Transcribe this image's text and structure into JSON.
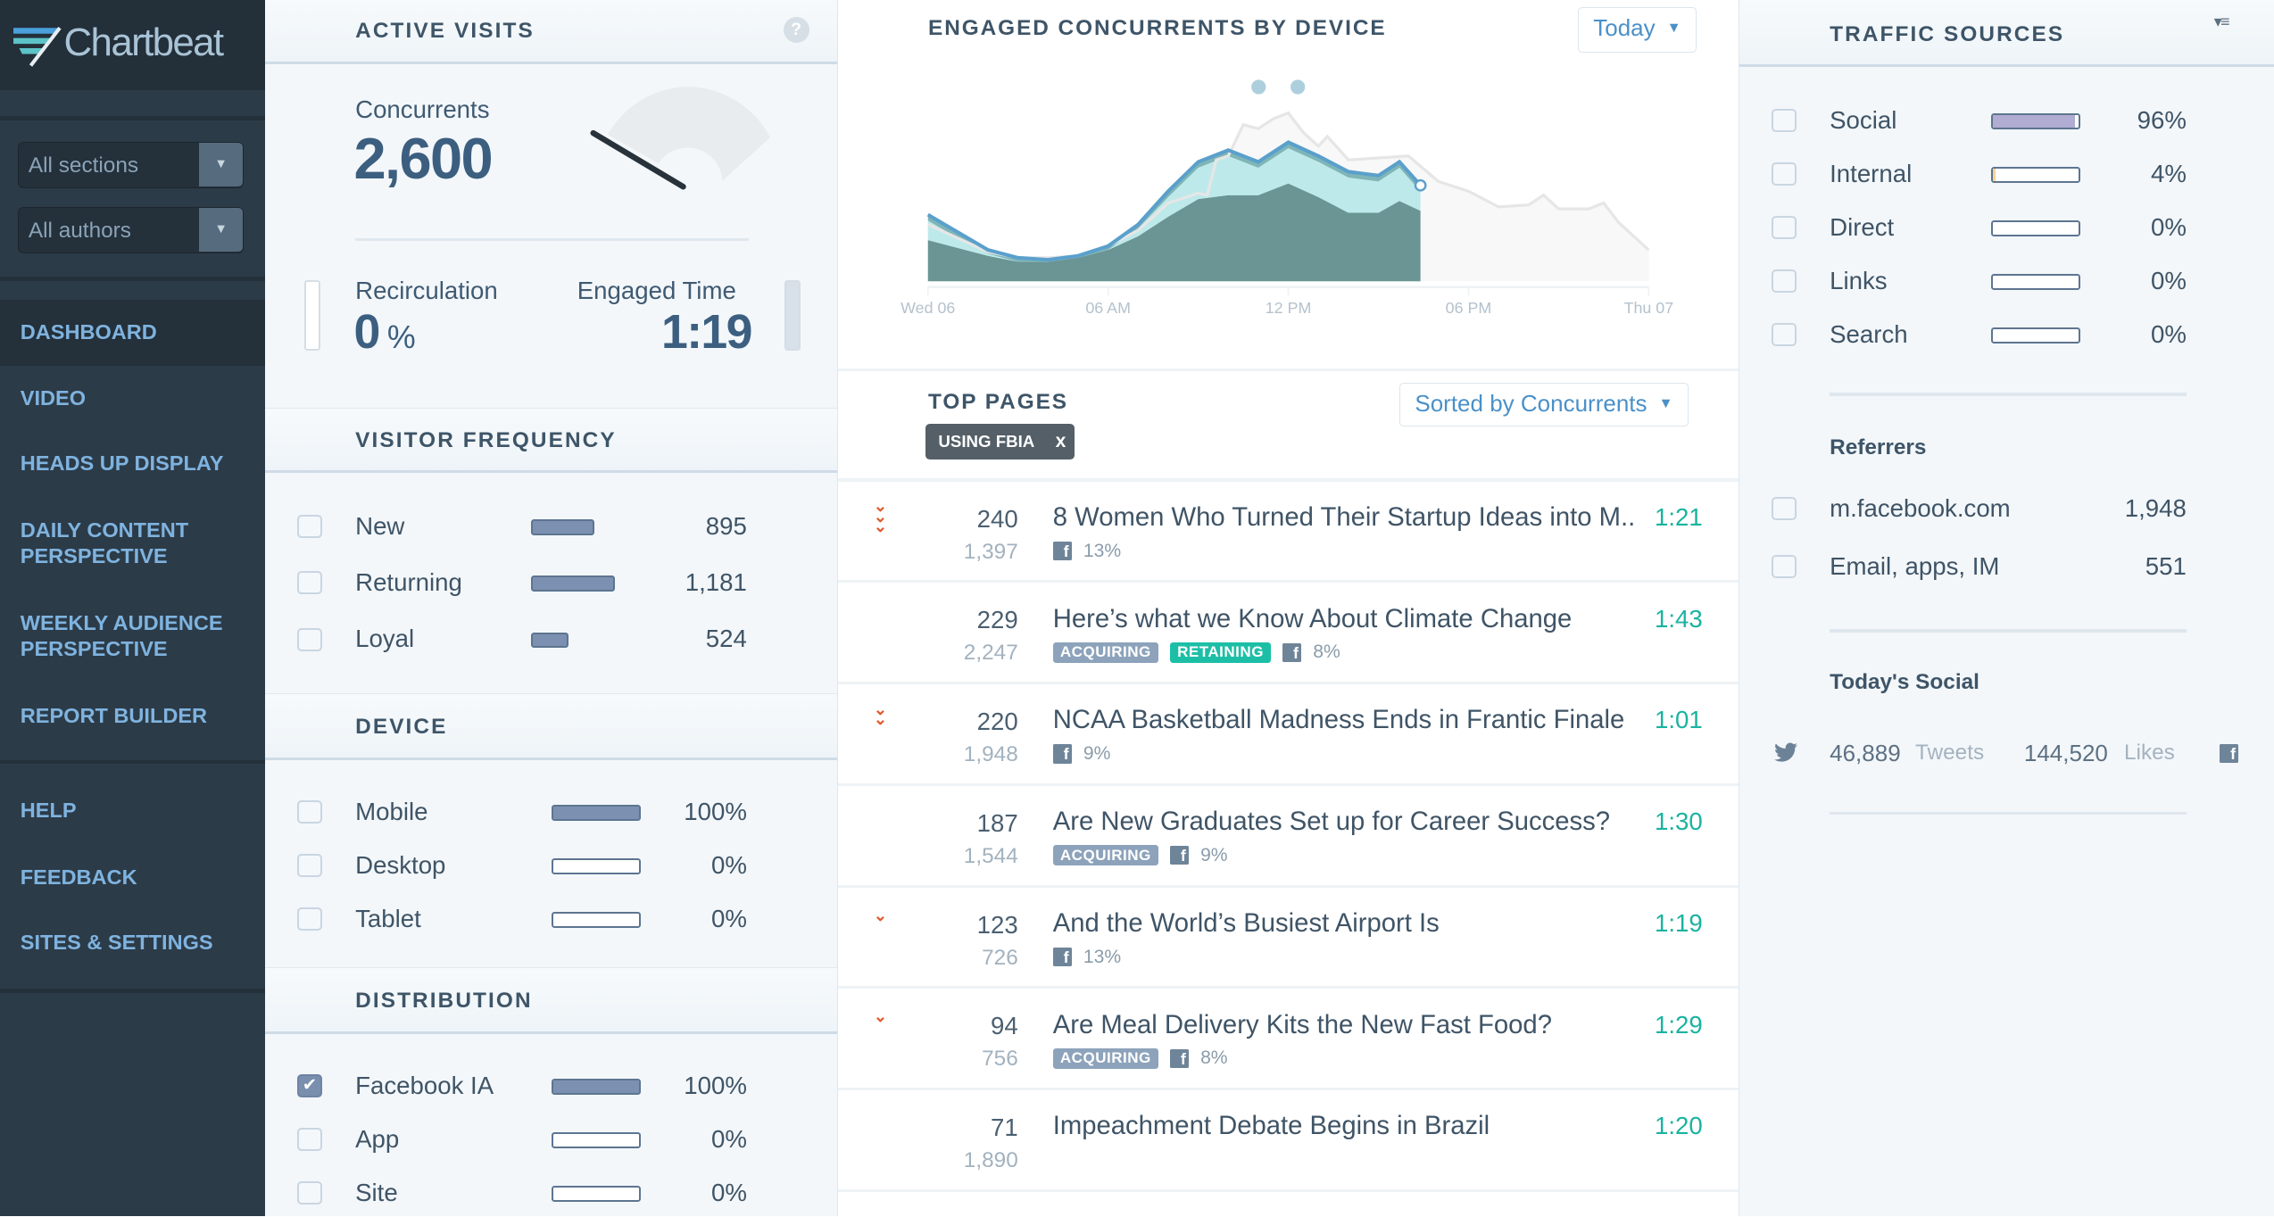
{
  "sidebar": {
    "logo": "Chartbeat",
    "filters": [
      {
        "label": "All sections"
      },
      {
        "label": "All authors"
      }
    ],
    "nav": [
      {
        "label": "DASHBOARD",
        "active": true
      },
      {
        "label": "VIDEO"
      },
      {
        "label": "HEADS UP DISPLAY"
      },
      {
        "label": "DAILY CONTENT PERSPECTIVE"
      },
      {
        "label": "WEEKLY AUDIENCE PERSPECTIVE"
      },
      {
        "label": "REPORT BUILDER"
      }
    ],
    "secondary": [
      {
        "label": "HELP"
      },
      {
        "label": "FEEDBACK"
      },
      {
        "label": "SITES & SETTINGS"
      }
    ]
  },
  "active_visits": {
    "title": "ACTIVE VISITS",
    "help": "?",
    "concurrents_label": "Concurrents",
    "concurrents": "2,600",
    "recirculation_label": "Recirculation",
    "recirculation": "0",
    "recirculation_unit": "%",
    "engaged_label": "Engaged Time",
    "engaged": "1:19"
  },
  "visitor_frequency": {
    "title": "VISITOR FREQUENCY",
    "rows": [
      {
        "label": "New",
        "value": "895",
        "fraction": 0.76
      },
      {
        "label": "Returning",
        "value": "1,181",
        "fraction": 1.0
      },
      {
        "label": "Loyal",
        "value": "524",
        "fraction": 0.45
      }
    ]
  },
  "device": {
    "title": "DEVICE",
    "rows": [
      {
        "label": "Mobile",
        "value": "100%",
        "fraction": 1.0
      },
      {
        "label": "Desktop",
        "value": "0%",
        "fraction": 0
      },
      {
        "label": "Tablet",
        "value": "0%",
        "fraction": 0
      }
    ]
  },
  "distribution": {
    "title": "DISTRIBUTION",
    "rows": [
      {
        "label": "Facebook IA",
        "value": "100%",
        "fraction": 1.0,
        "checked": true
      },
      {
        "label": "App",
        "value": "0%",
        "fraction": 0
      },
      {
        "label": "Site",
        "value": "0%",
        "fraction": 0
      }
    ]
  },
  "chart_data": {
    "type": "area",
    "title": "ENGAGED CONCURRENTS BY DEVICE",
    "range_selector": "Today",
    "x_ticks": [
      "Wed 06",
      "06 AM",
      "12 PM",
      "06 PM",
      "Thu 07"
    ],
    "xlim": [
      0,
      24
    ],
    "ylim": [
      0,
      100
    ],
    "grid": false,
    "stacked": true,
    "colors": {
      "bottom": "#6a9594",
      "middle": "#bde9ea",
      "top": "#7fb5b7",
      "line": "#5aa0cc",
      "previous": "#e6e6e6"
    },
    "x": [
      0,
      1,
      2,
      3,
      4,
      5,
      6,
      7,
      8,
      9,
      10,
      11,
      12,
      13,
      14,
      15,
      15.7,
      16.4
    ],
    "series": [
      {
        "values": [
          21,
          17,
          13,
          10,
          10,
          12,
          16,
          23,
          33,
          42,
          44,
          44,
          50,
          43,
          35,
          35,
          41,
          36
        ]
      },
      {
        "values": [
          10,
          5,
          1,
          0,
          0,
          0,
          0,
          4,
          10,
          16,
          20,
          14,
          18,
          18,
          18,
          16,
          17,
          10
        ]
      },
      {
        "values": [
          3,
          3,
          2,
          2,
          1,
          1,
          2,
          2,
          3,
          3,
          3,
          3,
          3,
          3,
          3,
          3,
          3,
          3
        ]
      }
    ],
    "previous_period": {
      "x": [
        0,
        1,
        2,
        3,
        4,
        5,
        6,
        7,
        8,
        9,
        9.3,
        9.6,
        10,
        10.5,
        11,
        11.5,
        12,
        12.5,
        13,
        13.3,
        14,
        15,
        16,
        17,
        18,
        19,
        20,
        20.5,
        21,
        22,
        22.5,
        23,
        24
      ],
      "values": [
        29,
        22,
        15,
        12,
        12,
        13,
        18,
        26,
        40,
        45,
        44,
        62,
        64,
        80,
        78,
        83,
        86,
        76,
        69,
        74,
        62,
        63,
        64,
        51,
        46,
        38,
        39,
        44,
        37,
        37,
        40,
        30,
        16
      ]
    },
    "annotations": 2
  },
  "top_pages": {
    "title": "TOP PAGES",
    "sort": "Sorted by Concurrents",
    "filter_chip": "USING FBIA",
    "filter_close": "x",
    "rows": [
      {
        "trend": "down-3",
        "concurrents": "240",
        "total": "1,397",
        "title": "8 Women Who Turned Their Startup Ideas into M..",
        "engaged": "1:21",
        "tags": [],
        "fb": "13%"
      },
      {
        "trend": "",
        "concurrents": "229",
        "total": "2,247",
        "title": "Here’s what we Know About Climate Change",
        "engaged": "1:43",
        "tags": [
          "ACQUIRING",
          "RETAINING"
        ],
        "fb": "8%"
      },
      {
        "trend": "down-2",
        "concurrents": "220",
        "total": "1,948",
        "title": "NCAA Basketball Madness Ends in Frantic Finale",
        "engaged": "1:01",
        "tags": [],
        "fb": "9%"
      },
      {
        "trend": "",
        "concurrents": "187",
        "total": "1,544",
        "title": "Are New Graduates Set up for Career Success?",
        "engaged": "1:30",
        "tags": [
          "ACQUIRING"
        ],
        "fb": "9%"
      },
      {
        "trend": "down-1",
        "concurrents": "123",
        "total": "726",
        "title": "And the World’s Busiest Airport Is",
        "engaged": "1:19",
        "tags": [],
        "fb": "13%"
      },
      {
        "trend": "down-1",
        "concurrents": "94",
        "total": "756",
        "title": "Are Meal Delivery Kits the New Fast Food?",
        "engaged": "1:29",
        "tags": [
          "ACQUIRING"
        ],
        "fb": "8%"
      },
      {
        "trend": "",
        "concurrents": "71",
        "total": "1,890",
        "title": "Impeachment Debate Begins in Brazil",
        "engaged": "1:20",
        "tags": [],
        "fb": ""
      }
    ],
    "tag_colors": {
      "ACQUIRING": "#8da3bb",
      "RETAINING": "#1cbfa6"
    }
  },
  "traffic_sources": {
    "title": "TRAFFIC SOURCES",
    "rows": [
      {
        "label": "Social",
        "value": "96%",
        "fraction": 0.96,
        "color": "#b1acd2"
      },
      {
        "label": "Internal",
        "value": "4%",
        "fraction": 0.04,
        "color": "#f7d493"
      },
      {
        "label": "Direct",
        "value": "0%",
        "fraction": 0
      },
      {
        "label": "Links",
        "value": "0%",
        "fraction": 0
      },
      {
        "label": "Search",
        "value": "0%",
        "fraction": 0
      }
    ],
    "referrers_title": "Referrers",
    "referrers": [
      {
        "label": "m.facebook.com",
        "value": "1,948"
      },
      {
        "label": "Email, apps, IM",
        "value": "551"
      }
    ],
    "social_title": "Today's Social",
    "tweets": "46,889",
    "tweets_label": "Tweets",
    "likes": "144,520",
    "likes_label": "Likes"
  }
}
